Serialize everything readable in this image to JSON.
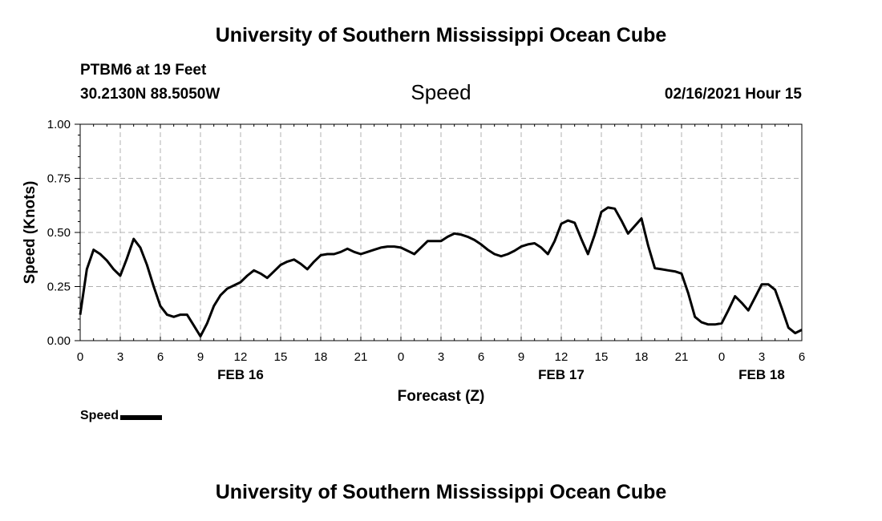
{
  "page": {
    "title_top": "University of Southern Mississippi Ocean Cube",
    "title_bottom": "University of Southern Mississippi Ocean Cube",
    "station": "PTBM6 at 19 Feet",
    "coords": "30.2130N 88.5050W",
    "datetime": "02/16/2021 Hour 15",
    "legend_label": "Speed"
  },
  "chart_data": {
    "type": "line",
    "title": "Speed",
    "xlabel": "Forecast (Z)",
    "ylabel": "Speed (Knots)",
    "xlim": [
      0,
      54
    ],
    "ylim": [
      0,
      1
    ],
    "grid": true,
    "legend": "bottom-left",
    "x_ticks": [
      0,
      3,
      6,
      9,
      12,
      15,
      18,
      21,
      24,
      27,
      30,
      33,
      36,
      39,
      42,
      45,
      48,
      51,
      54
    ],
    "x_tick_labels": [
      "0",
      "3",
      "6",
      "9",
      "12",
      "15",
      "18",
      "21",
      "0",
      "3",
      "6",
      "9",
      "12",
      "15",
      "18",
      "21",
      "0",
      "3",
      "6"
    ],
    "y_ticks": [
      0,
      0.25,
      0.5,
      0.75,
      1.0
    ],
    "y_tick_labels": [
      "0.00",
      "0.25",
      "0.50",
      "0.75",
      "1.00"
    ],
    "date_labels": [
      {
        "x": 12,
        "label": "FEB 16"
      },
      {
        "x": 36,
        "label": "FEB 17"
      },
      {
        "x": 51,
        "label": "FEB 18"
      }
    ],
    "series": [
      {
        "name": "Speed",
        "color": "#000000",
        "x": [
          0,
          0.5,
          1,
          1.5,
          2,
          2.5,
          3,
          3.5,
          4,
          4.5,
          5,
          5.5,
          6,
          6.5,
          7,
          7.5,
          8,
          8.5,
          9,
          9.5,
          10,
          10.5,
          11,
          11.5,
          12,
          12.5,
          13,
          13.5,
          14,
          14.5,
          15,
          15.5,
          16,
          16.5,
          17,
          17.5,
          18,
          18.5,
          19,
          19.5,
          20,
          20.5,
          21,
          21.5,
          22,
          22.5,
          23,
          23.5,
          24,
          24.5,
          25,
          25.5,
          26,
          26.5,
          27,
          27.5,
          28,
          28.5,
          29,
          29.5,
          30,
          30.5,
          31,
          31.5,
          32,
          32.5,
          33,
          33.5,
          34,
          34.5,
          35,
          35.5,
          36,
          36.5,
          37,
          37.5,
          38,
          38.5,
          39,
          39.5,
          40,
          40.5,
          41,
          41.5,
          42,
          42.5,
          43,
          43.5,
          44,
          44.5,
          45,
          45.5,
          46,
          46.5,
          47,
          47.5,
          48,
          48.5,
          49,
          49.5,
          50,
          50.5,
          51,
          51.5,
          52,
          52.5,
          53,
          53.5,
          54
        ],
        "values": [
          0.12,
          0.33,
          0.42,
          0.4,
          0.37,
          0.33,
          0.3,
          0.38,
          0.47,
          0.43,
          0.35,
          0.25,
          0.16,
          0.12,
          0.11,
          0.12,
          0.12,
          0.07,
          0.02,
          0.08,
          0.16,
          0.21,
          0.24,
          0.255,
          0.27,
          0.3,
          0.325,
          0.31,
          0.29,
          0.32,
          0.35,
          0.365,
          0.375,
          0.355,
          0.33,
          0.365,
          0.395,
          0.4,
          0.4,
          0.41,
          0.425,
          0.41,
          0.4,
          0.41,
          0.42,
          0.43,
          0.435,
          0.435,
          0.43,
          0.415,
          0.4,
          0.43,
          0.46,
          0.46,
          0.46,
          0.48,
          0.495,
          0.49,
          0.48,
          0.465,
          0.445,
          0.42,
          0.4,
          0.39,
          0.4,
          0.415,
          0.435,
          0.445,
          0.45,
          0.43,
          0.4,
          0.46,
          0.54,
          0.555,
          0.545,
          0.47,
          0.4,
          0.49,
          0.595,
          0.615,
          0.61,
          0.555,
          0.495,
          0.53,
          0.565,
          0.44,
          0.335,
          0.33,
          0.325,
          0.32,
          0.31,
          0.22,
          0.11,
          0.085,
          0.075,
          0.075,
          0.08,
          0.14,
          0.205,
          0.175,
          0.14,
          0.2,
          0.26,
          0.26,
          0.235,
          0.15,
          0.06,
          0.035,
          0.05
        ]
      }
    ]
  }
}
